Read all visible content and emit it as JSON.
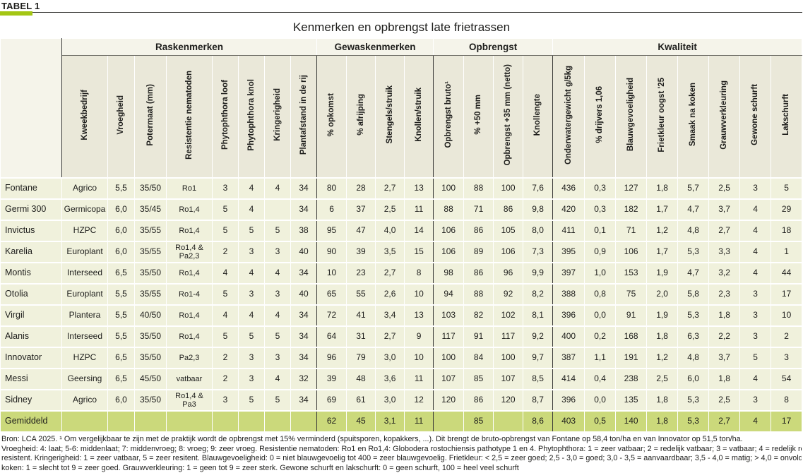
{
  "page": {
    "tag": "TABEL 1",
    "title": "Kenmerken en opbrengst late frietrassen"
  },
  "colors": {
    "accent_green": "#a4c614",
    "row_bg": "#f0f1dc",
    "header_cell_bg": "#eae8d9",
    "group_row_bg": "#f5f4ea",
    "avg_row_bg": "#cbd97b",
    "text": "#1d1d1b"
  },
  "table": {
    "groups": [
      {
        "label": "Raskenmerken",
        "span": 8
      },
      {
        "label": "Gewaskenmerken",
        "span": 4
      },
      {
        "label": "Opbrengst",
        "span": 4
      },
      {
        "label": "Kwaliteit",
        "span": 8
      }
    ],
    "columns": [
      "Kweekbedrijf",
      "Vroegheid",
      "Potermaat (mm)",
      "Resistentie nematoden",
      "Phytophthora loof",
      "Phytophthora knol",
      "Kringerigheid",
      "Plantafstand in de rij",
      "% opkomst",
      "% afrijping",
      "Stengels/struik",
      "Knollen/struik",
      "Opbrengst bruto¹",
      "% +50 mm",
      "Opbrengst +35 mm (netto)",
      "Knollengte",
      "Onderwatergewicht g/5kg",
      "% drijvers 1,06",
      "Blauwgevoeligheid",
      "Frietkleur oogst '25",
      "Smaak na koken",
      "Grauwverkleuring",
      "Gewone schurft",
      "Lakschurft"
    ],
    "rows": [
      {
        "name": "Fontane",
        "cells": [
          "Agrico",
          "5,5",
          "35/50",
          "Ro1",
          "3",
          "4",
          "4",
          "34",
          "80",
          "28",
          "2,7",
          "13",
          "100",
          "88",
          "100",
          "7,6",
          "436",
          "0,3",
          "127",
          "1,8",
          "5,7",
          "2,5",
          "3",
          "5"
        ],
        "divider_after": false
      },
      {
        "name": "Germi 300",
        "cells": [
          "Germicopa",
          "6,0",
          "35/45",
          "Ro1,4",
          "5",
          "4",
          "",
          "34",
          "6",
          "37",
          "2,5",
          "11",
          "88",
          "71",
          "86",
          "9,8",
          "420",
          "0,3",
          "182",
          "1,7",
          "4,7",
          "3,7",
          "4",
          "29"
        ],
        "divider_after": false
      },
      {
        "name": "Invictus",
        "cells": [
          "HZPC",
          "6,0",
          "35/55",
          "Ro1,4",
          "5",
          "5",
          "5",
          "38",
          "95",
          "47",
          "4,0",
          "14",
          "106",
          "86",
          "105",
          "8,0",
          "411",
          "0,1",
          "71",
          "1,2",
          "4,8",
          "2,7",
          "4",
          "18"
        ],
        "divider_after": false
      },
      {
        "name": "Karelia",
        "cells": [
          "Europlant",
          "6,0",
          "35/55",
          "Ro1,4 & Pa2,3",
          "2",
          "3",
          "3",
          "40",
          "90",
          "39",
          "3,5",
          "15",
          "106",
          "89",
          "106",
          "7,3",
          "395",
          "0,9",
          "106",
          "1,7",
          "5,3",
          "3,3",
          "4",
          "1"
        ],
        "divider_after": false
      },
      {
        "name": "Montis",
        "cells": [
          "Interseed",
          "6,5",
          "35/50",
          "Ro1,4",
          "4",
          "4",
          "4",
          "34",
          "10",
          "23",
          "2,7",
          "8",
          "98",
          "86",
          "96",
          "9,9",
          "397",
          "1,0",
          "153",
          "1,9",
          "4,7",
          "3,2",
          "4",
          "44"
        ],
        "divider_after": false
      },
      {
        "name": "Otolia",
        "cells": [
          "Europlant",
          "5,5",
          "35/55",
          "Ro1-4",
          "5",
          "3",
          "3",
          "40",
          "65",
          "55",
          "2,6",
          "10",
          "94",
          "88",
          "92",
          "8,2",
          "388",
          "0,8",
          "75",
          "2,0",
          "5,8",
          "2,3",
          "3",
          "17"
        ],
        "divider_after": false
      },
      {
        "name": "Virgil",
        "cells": [
          "Plantera",
          "5,5",
          "40/50",
          "Ro1,4",
          "4",
          "4",
          "4",
          "34",
          "72",
          "41",
          "3,4",
          "13",
          "103",
          "82",
          "102",
          "8,1",
          "396",
          "0,0",
          "91",
          "1,9",
          "5,3",
          "1,8",
          "3",
          "10"
        ],
        "divider_after": true
      },
      {
        "name": "Alanis",
        "cells": [
          "Interseed",
          "5,5",
          "35/50",
          "Ro1,4",
          "5",
          "5",
          "5",
          "34",
          "64",
          "31",
          "2,7",
          "9",
          "117",
          "91",
          "117",
          "9,2",
          "400",
          "0,2",
          "168",
          "1,8",
          "6,3",
          "2,2",
          "3",
          "2"
        ],
        "divider_after": false
      },
      {
        "name": "Innovator",
        "cells": [
          "HZPC",
          "6,5",
          "35/50",
          "Pa2,3",
          "2",
          "3",
          "3",
          "34",
          "96",
          "79",
          "3,0",
          "10",
          "100",
          "84",
          "100",
          "9,7",
          "387",
          "1,1",
          "191",
          "1,2",
          "4,8",
          "3,7",
          "5",
          "3"
        ],
        "divider_after": false
      },
      {
        "name": "Messi",
        "cells": [
          "Geersing",
          "6,5",
          "45/50",
          "vatbaar",
          "2",
          "3",
          "4",
          "32",
          "39",
          "48",
          "3,6",
          "11",
          "107",
          "85",
          "107",
          "8,5",
          "414",
          "0,4",
          "238",
          "2,5",
          "6,0",
          "1,8",
          "4",
          "54"
        ],
        "divider_after": false
      },
      {
        "name": "Sidney",
        "cells": [
          "Agrico",
          "6,0",
          "35/50",
          "Ro1,4 & Pa3",
          "3",
          "5",
          "5",
          "34",
          "69",
          "61",
          "3,0",
          "12",
          "120",
          "86",
          "120",
          "8,7",
          "396",
          "0,0",
          "135",
          "1,8",
          "5,3",
          "2,5",
          "3",
          "8"
        ],
        "divider_after": false
      }
    ],
    "average_row": {
      "name": "Gemiddeld",
      "cells": [
        "",
        "",
        "",
        "",
        "",
        "",
        "",
        "",
        "62",
        "45",
        "3,1",
        "11",
        "",
        "85",
        "",
        "8,6",
        "403",
        "0,5",
        "140",
        "1,8",
        "5,3",
        "2,7",
        "4",
        "17"
      ]
    }
  },
  "notes": {
    "lines": [
      "Bron: LCA 2025. ¹ Om vergelijkbaar te zijn met de praktijk wordt de opbrengst met 15% verminderd (spuitsporen, kopakkers, ...). Dit brengt de bruto-opbrengst van Fontane op 58,4 ton/ha en van Innovator op 51,5 ton/ha.",
      "Vroegheid: 4: laat; 5-6: middenlaat; 7: middenvroeg; 8: vroeg; 9: zeer vroeg. Resistentie nematoden: Ro1 en Ro1,4: Globodera rostochiensis pathotype 1 en 4. Phytophthora: 1 = zeer vatbaar; 2 = redelijk vatbaar; 3 = vatbaar; 4 = redelijk resistent; 5 = zeer",
      "resistent. Kringerigheid: 1 = zeer vatbaar, 5 = zeer resitent. Blauwgevoeligheid: 0 = niet blauwgevoelig tot 400 = zeer blauwgevoelig. Frietkleur: < 2,5 = zeer goed; 2,5 - 3,0 = goed; 3,0 - 3,5 = aanvaardbaar; 3,5 - 4,0 = matig; > 4,0 = onvoldoende. Smaak na",
      "koken: 1 = slecht tot 9 = zeer goed. Grauwverkleuring: 1 = geen tot 9 = zeer sterk. Gewone schurft en lakschurft: 0 = geen schurft, 100 = heel veel schurft"
    ]
  }
}
